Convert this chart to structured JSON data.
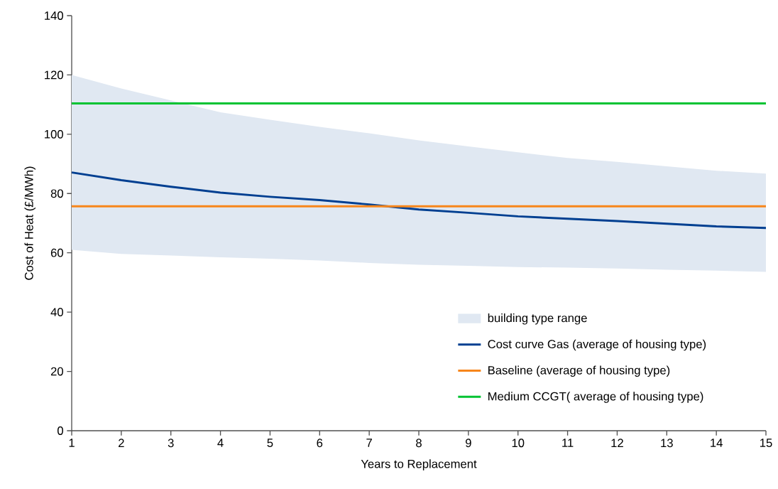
{
  "chart_data": {
    "type": "line",
    "xlabel": "Years to Replacement",
    "ylabel": "Cost of Heat (£/MWh)",
    "x": [
      1,
      2,
      3,
      4,
      5,
      6,
      7,
      8,
      9,
      10,
      11,
      12,
      13,
      14,
      15
    ],
    "series": [
      {
        "name": "Cost curve Gas (average of housing type)",
        "color": "#003f91",
        "values": [
          87.1,
          84.5,
          82.3,
          80.3,
          78.9,
          77.8,
          76.3,
          74.6,
          73.5,
          72.3,
          71.5,
          70.7,
          69.8,
          68.9,
          68.4
        ],
        "lower": [
          61.0,
          59.6,
          59.1,
          58.5,
          58.0,
          57.4,
          56.6,
          56.0,
          55.6,
          55.2,
          55.0,
          54.7,
          54.3,
          54.0,
          53.6
        ],
        "upper": [
          120.0,
          115.4,
          111.4,
          107.4,
          104.9,
          102.5,
          100.3,
          97.9,
          95.9,
          93.9,
          92.0,
          90.7,
          89.2,
          87.7,
          86.7
        ]
      },
      {
        "name": "Baseline (average of housing type)",
        "color": "#f7861b",
        "values": [
          75.7,
          75.7,
          75.7,
          75.7,
          75.7,
          75.7,
          75.7,
          75.7,
          75.7,
          75.7,
          75.7,
          75.7,
          75.7,
          75.7,
          75.7
        ]
      },
      {
        "name": "Medium CCGT( average of housing type)",
        "color": "#00c332",
        "values": [
          110.4,
          110.4,
          110.4,
          110.4,
          110.4,
          110.4,
          110.4,
          110.4,
          110.4,
          110.4,
          110.4,
          110.4,
          110.4,
          110.4,
          110.4
        ]
      }
    ],
    "annotations": [
      "building type range"
    ],
    "xlim": [
      1,
      15
    ],
    "ylim": [
      0,
      140
    ],
    "xticks": [
      1,
      2,
      3,
      4,
      5,
      6,
      7,
      8,
      9,
      10,
      11,
      12,
      13,
      14,
      15
    ],
    "yticks": [
      0,
      20,
      40,
      60,
      80,
      100,
      120,
      140
    ],
    "grid": false,
    "legend": "bottom right",
    "marker": "none",
    "line_style": "solid"
  }
}
